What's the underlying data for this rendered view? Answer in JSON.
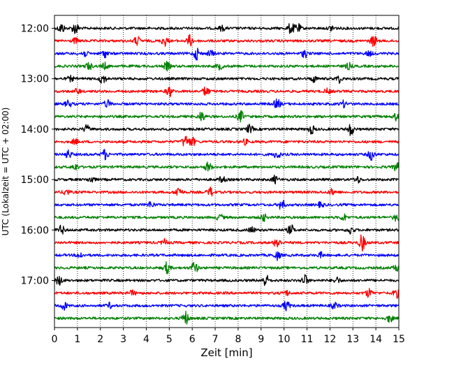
{
  "chart_data": {
    "type": "line",
    "title": "",
    "xlabel": "Zeit  [min]",
    "ylabel": "UTC (Lokalzeit = UTC + 02:00)",
    "xlim": [
      0,
      15
    ],
    "x_ticks": [
      "0",
      "1",
      "2",
      "3",
      "4",
      "5",
      "6",
      "7",
      "8",
      "9",
      "10",
      "11",
      "12",
      "13",
      "14",
      "15"
    ],
    "y_tick_labels": [
      "12:00",
      "13:00",
      "14:00",
      "15:00",
      "16:00",
      "17:00"
    ],
    "grid": "vertical dotted",
    "legend": "none",
    "trace_minutes_per_row": 15,
    "row_colors": [
      "#000000",
      "#ff0000",
      "#0000ff",
      "#008000"
    ],
    "rows": [
      {
        "start": "12:00",
        "bursts": [
          [
            0.3,
            0.8
          ],
          [
            0.9,
            1.0
          ],
          [
            7.3,
            0.4
          ],
          [
            10.3,
            0.9
          ],
          [
            10.6,
            0.7
          ],
          [
            12.1,
            0.5
          ]
        ]
      },
      {
        "start": "12:15",
        "bursts": [
          [
            0.9,
            0.4
          ],
          [
            3.6,
            0.7
          ],
          [
            4.8,
            0.8
          ],
          [
            5.9,
            0.9
          ],
          [
            13.9,
            0.9
          ]
        ]
      },
      {
        "start": "12:30",
        "bursts": [
          [
            1.3,
            0.5
          ],
          [
            2.2,
            0.6
          ],
          [
            6.2,
            1.0
          ],
          [
            6.8,
            0.5
          ],
          [
            10.9,
            0.6
          ],
          [
            13.7,
            0.4
          ]
        ]
      },
      {
        "start": "12:45",
        "bursts": [
          [
            1.5,
            0.6
          ],
          [
            2.2,
            0.5
          ],
          [
            4.9,
            0.7
          ],
          [
            7.2,
            0.5
          ],
          [
            12.8,
            0.5
          ]
        ]
      },
      {
        "start": "13:00",
        "bursts": [
          [
            0.7,
            0.4
          ],
          [
            2.1,
            0.9
          ],
          [
            11.3,
            0.5
          ],
          [
            12.4,
            0.6
          ]
        ]
      },
      {
        "start": "13:15",
        "bursts": [
          [
            1.0,
            0.4
          ],
          [
            5.0,
            0.8
          ],
          [
            6.6,
            0.8
          ],
          [
            11.9,
            0.4
          ]
        ]
      },
      {
        "start": "13:30",
        "bursts": [
          [
            0.6,
            0.6
          ],
          [
            2.3,
            0.6
          ],
          [
            9.7,
            0.8
          ],
          [
            12.6,
            0.5
          ]
        ]
      },
      {
        "start": "13:45",
        "bursts": [
          [
            6.4,
            0.8
          ],
          [
            8.1,
            0.9
          ],
          [
            14.9,
            0.6
          ]
        ]
      },
      {
        "start": "14:00",
        "bursts": [
          [
            1.4,
            0.6
          ],
          [
            8.5,
            0.7
          ],
          [
            11.2,
            0.7
          ],
          [
            12.9,
            1.0
          ]
        ]
      },
      {
        "start": "14:15",
        "bursts": [
          [
            0.9,
            0.4
          ],
          [
            5.7,
            1.0
          ],
          [
            6.0,
            0.7
          ],
          [
            8.3,
            0.4
          ]
        ]
      },
      {
        "start": "14:30",
        "bursts": [
          [
            0.6,
            0.7
          ],
          [
            2.2,
            0.8
          ],
          [
            9.7,
            0.7
          ],
          [
            13.8,
            0.9
          ]
        ]
      },
      {
        "start": "14:45",
        "bursts": [
          [
            0.9,
            0.5
          ],
          [
            6.7,
            0.8
          ],
          [
            14.9,
            0.7
          ]
        ]
      },
      {
        "start": "15:00",
        "bursts": [
          [
            1.6,
            0.5
          ],
          [
            7.3,
            0.5
          ],
          [
            9.6,
            0.6
          ],
          [
            13.2,
            0.5
          ]
        ]
      },
      {
        "start": "15:15",
        "bursts": [
          [
            0.5,
            0.5
          ],
          [
            5.4,
            0.9
          ],
          [
            6.8,
            0.7
          ],
          [
            12.1,
            0.5
          ]
        ]
      },
      {
        "start": "15:30",
        "bursts": [
          [
            4.2,
            0.5
          ],
          [
            9.9,
            0.9
          ],
          [
            11.6,
            0.4
          ]
        ]
      },
      {
        "start": "15:45",
        "bursts": [
          [
            7.2,
            0.5
          ],
          [
            9.1,
            0.6
          ],
          [
            12.6,
            0.5
          ],
          [
            14.9,
            0.6
          ]
        ]
      },
      {
        "start": "16:00",
        "bursts": [
          [
            0.3,
            0.7
          ],
          [
            8.6,
            0.5
          ],
          [
            10.3,
            0.8
          ],
          [
            12.9,
            0.6
          ]
        ]
      },
      {
        "start": "16:15",
        "bursts": [
          [
            4.8,
            0.5
          ],
          [
            9.7,
            1.0
          ],
          [
            13.4,
            1.3
          ]
        ]
      },
      {
        "start": "16:30",
        "bursts": [
          [
            1.1,
            0.5
          ],
          [
            9.7,
            0.7
          ],
          [
            11.6,
            0.4
          ]
        ]
      },
      {
        "start": "16:45",
        "bursts": [
          [
            4.9,
            0.9
          ],
          [
            6.1,
            1.0
          ],
          [
            14.9,
            0.6
          ]
        ]
      },
      {
        "start": "17:00",
        "bursts": [
          [
            0.2,
            0.7
          ],
          [
            9.2,
            1.0
          ],
          [
            10.9,
            0.9
          ],
          [
            12.3,
            0.5
          ]
        ]
      },
      {
        "start": "17:15",
        "bursts": [
          [
            3.4,
            0.4
          ],
          [
            10.1,
            0.4
          ],
          [
            13.7,
            0.7
          ],
          [
            14.9,
            0.7
          ]
        ]
      },
      {
        "start": "17:30",
        "bursts": [
          [
            0.4,
            0.7
          ],
          [
            2.4,
            0.4
          ],
          [
            10.1,
            0.8
          ],
          [
            12.2,
            0.5
          ]
        ]
      },
      {
        "start": "17:45",
        "bursts": [
          [
            5.7,
            1.1
          ],
          [
            14.6,
            0.6
          ]
        ]
      }
    ]
  }
}
